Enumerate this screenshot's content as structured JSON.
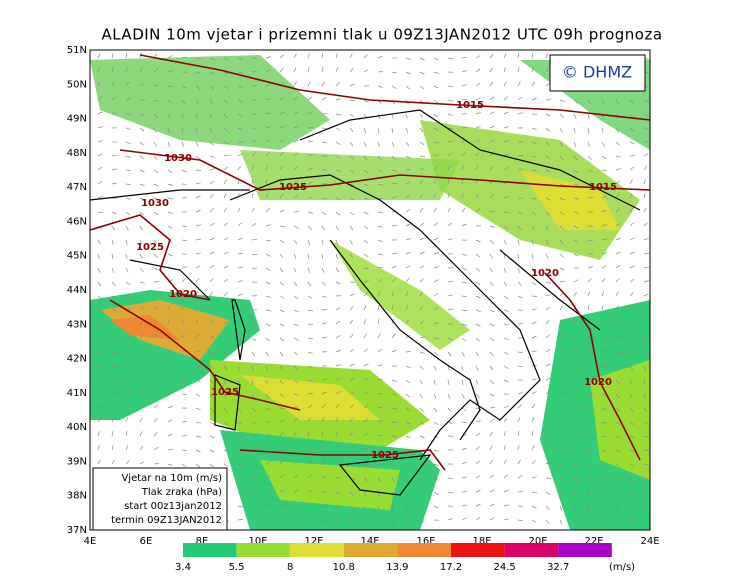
{
  "header": {
    "title": "ALADIN 10m vjetar i prizemni tlak u 09Z13JAN2012 UTC 09h prognoza",
    "copyright": "© DHMZ"
  },
  "map": {
    "lat_labels": [
      "51N",
      "50N",
      "49N",
      "48N",
      "47N",
      "46N",
      "45N",
      "44N",
      "43N",
      "42N",
      "41N",
      "40N",
      "39N",
      "38N",
      "37N"
    ],
    "lon_labels": [
      "4E",
      "6E",
      "8E",
      "10E",
      "12E",
      "14E",
      "16E",
      "18E",
      "20E",
      "22E",
      "24E"
    ],
    "isobar_labels": [
      "1015",
      "1030",
      "1025",
      "1030",
      "1015",
      "1025",
      "1020",
      "1020",
      "1020",
      "1025",
      "1025"
    ]
  },
  "info_box": {
    "lines": [
      "Vjetar na 10m (m/s)",
      "Tlak zraka (hPa)",
      "start 00z13jan2012",
      "termin 09Z13JAN2012"
    ]
  },
  "colorbar": {
    "labels": [
      "3.4",
      "5.5",
      "8",
      "10.8",
      "13.9",
      "17.2",
      "24.5",
      "32.7"
    ],
    "unit": "(m/s)",
    "colors": [
      "#22cc77",
      "#99dd33",
      "#dddd33",
      "#ddaa33",
      "#ee8833",
      "#ee1111",
      "#dd0066",
      "#aa00cc"
    ]
  }
}
